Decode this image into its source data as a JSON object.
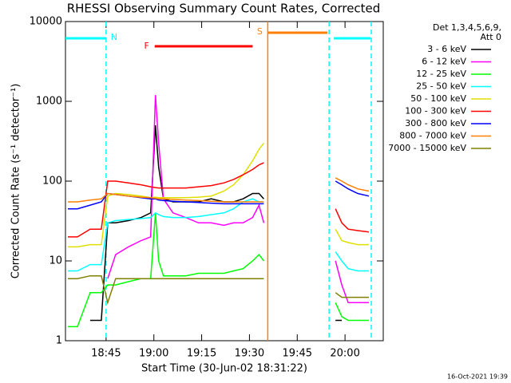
{
  "chart_data": {
    "type": "line",
    "title": "RHESSI Observing Summary Count Rates, Corrected",
    "xlabel": "Start Time (30-Jun-02 18:31:22)",
    "ylabel": "Corrected Count Rate (s⁻¹ detector⁻¹)",
    "log_y": true,
    "xlim": [
      1112.25,
      1212
    ],
    "ylim": [
      1,
      10000
    ],
    "xticks": [
      {
        "value": 1125,
        "label": "18:45"
      },
      {
        "value": 1140,
        "label": "19:00"
      },
      {
        "value": 1155,
        "label": "19:15"
      },
      {
        "value": 1170,
        "label": "19:30"
      },
      {
        "value": 1185,
        "label": "19:45"
      },
      {
        "value": 1200,
        "label": "20:00"
      }
    ],
    "yticks": [
      1,
      10,
      100,
      1000,
      10000
    ],
    "legend_title": [
      "Det 1,3,4,5,6,9,",
      "Att 0"
    ],
    "footer": "16-Oct-2021 19:39",
    "x": [
      1113,
      1116,
      1120,
      1123.5,
      1125.5,
      1128,
      1132,
      1136,
      1139,
      1140.5,
      1141.5,
      1143,
      1146,
      1150,
      1154,
      1158,
      1162,
      1165,
      1168,
      1171,
      1173,
      1174.5,
      1185,
      1197,
      1199,
      1201,
      1204,
      1207.5
    ],
    "series": [
      {
        "name": "3 - 6 keV",
        "color": "#000000",
        "values": [
          null,
          null,
          1.8,
          1.8,
          30,
          30,
          32,
          35,
          40,
          500,
          150,
          60,
          55,
          55,
          55,
          60,
          55,
          55,
          60,
          70,
          70,
          60,
          null,
          1.8,
          1.8,
          null,
          null,
          null
        ]
      },
      {
        "name": "6 - 12 keV",
        "color": "#ff00ff",
        "values": [
          null,
          null,
          null,
          null,
          6,
          12,
          15,
          18,
          20,
          1200,
          300,
          60,
          40,
          35,
          30,
          30,
          28,
          30,
          30,
          35,
          50,
          30,
          null,
          10,
          5,
          3,
          3,
          3
        ]
      },
      {
        "name": "12 - 25 keV",
        "color": "#00ff00",
        "values": [
          1.5,
          1.5,
          4,
          4,
          5,
          5,
          5.5,
          6,
          6,
          40,
          10,
          6.5,
          6.5,
          6.5,
          7,
          7,
          7,
          7.5,
          8,
          10,
          12,
          10,
          null,
          3,
          2,
          1.8,
          1.8,
          1.8
        ]
      },
      {
        "name": "25 - 50 keV",
        "color": "#00ffff",
        "values": [
          7.5,
          7.5,
          9,
          9,
          30,
          32,
          33,
          34,
          35,
          40,
          38,
          36,
          35,
          35,
          36,
          38,
          40,
          45,
          55,
          60,
          55,
          55,
          null,
          13,
          10,
          8,
          7.5,
          7.5
        ]
      },
      {
        "name": "50 - 100 keV",
        "color": "#e0e000",
        "values": [
          15,
          15,
          16,
          16,
          65,
          70,
          68,
          65,
          62,
          63,
          62,
          62,
          62,
          62,
          63,
          65,
          75,
          90,
          120,
          180,
          250,
          300,
          null,
          25,
          18,
          17,
          16,
          16
        ]
      },
      {
        "name": "100 - 300 keV",
        "color": "#ff0000",
        "values": [
          20,
          20,
          25,
          25,
          100,
          100,
          95,
          90,
          85,
          83,
          82,
          82,
          82,
          82,
          85,
          88,
          95,
          105,
          120,
          140,
          160,
          170,
          null,
          45,
          30,
          25,
          24,
          23
        ]
      },
      {
        "name": "300 - 800 keV",
        "color": "#0000ff",
        "values": [
          45,
          45,
          50,
          55,
          70,
          68,
          65,
          62,
          60,
          60,
          58,
          57,
          56,
          55,
          54,
          53,
          52,
          52,
          52,
          52,
          52,
          52,
          null,
          100,
          90,
          80,
          70,
          65
        ]
      },
      {
        "name": "800 - 7000 keV",
        "color": "#ff8000",
        "values": [
          55,
          55,
          58,
          60,
          70,
          68,
          65,
          63,
          62,
          61,
          60,
          60,
          59,
          58,
          57,
          56,
          55,
          55,
          55,
          55,
          55,
          55,
          null,
          110,
          100,
          90,
          80,
          75
        ]
      },
      {
        "name": "7000 - 15000 keV",
        "color": "#808000",
        "values": [
          6,
          6,
          6.5,
          6.5,
          3,
          6,
          6,
          6,
          6,
          6,
          6,
          6,
          6,
          6,
          6,
          6,
          6,
          6,
          6,
          6,
          6,
          6,
          null,
          4,
          3.5,
          3.5,
          3.5,
          3.5
        ]
      }
    ],
    "flags": [
      {
        "label": "N",
        "color": "#00ffff",
        "segments": [
          [
            1112.25,
            1125
          ],
          [
            1196.5,
            1208
          ]
        ]
      },
      {
        "label": "F",
        "color": "#ff0000",
        "segments": [
          [
            1140.25,
            1171
          ]
        ]
      },
      {
        "label": "S",
        "color": "#ff8000",
        "segments": [
          [
            1175.75,
            1194.5
          ]
        ]
      }
    ],
    "markers": [
      {
        "x": 1125,
        "color": "#00ffff",
        "dashed": true
      },
      {
        "x": 1175.75,
        "color": "#ff8000",
        "dashed": false
      },
      {
        "x": 1195,
        "color": "#00ffff",
        "dashed": true
      },
      {
        "x": 1208.25,
        "color": "#00ffff",
        "dashed": true
      }
    ]
  }
}
